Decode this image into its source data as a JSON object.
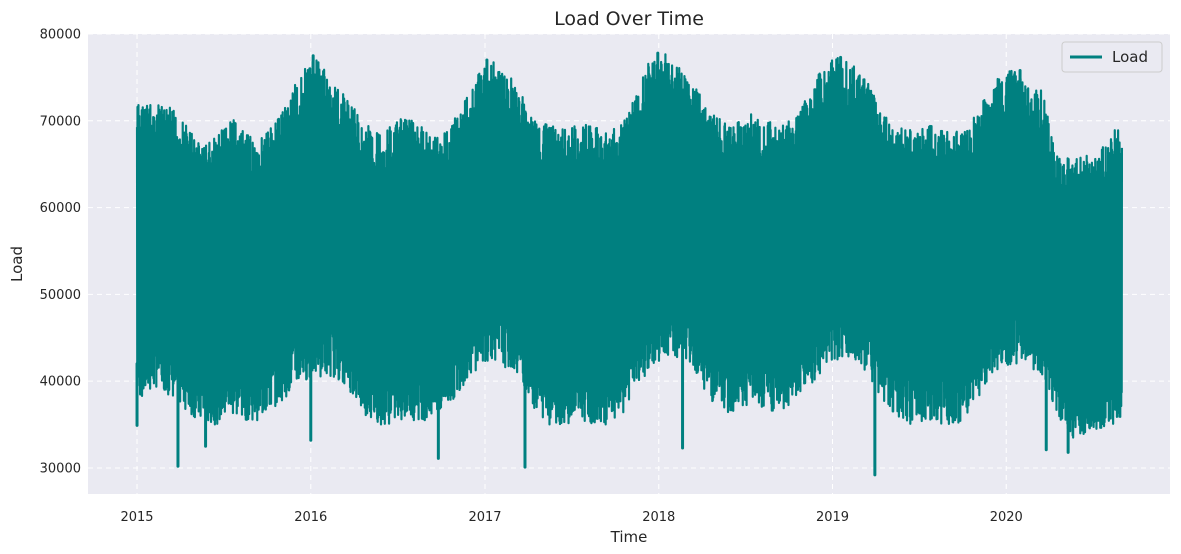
{
  "chart_data": {
    "type": "line",
    "title": "Load Over Time",
    "xlabel": "Time",
    "ylabel": "Load",
    "xlim": [
      "2014-09-20",
      "2020-12-10"
    ],
    "ylim": [
      27000,
      80000
    ],
    "x_ticks": [
      "2015",
      "2016",
      "2017",
      "2018",
      "2019",
      "2020"
    ],
    "y_ticks": [
      30000,
      40000,
      50000,
      60000,
      70000,
      80000
    ],
    "grid": true,
    "legend_position": "top-right",
    "colors": {
      "series": "#008080",
      "plot_background": "#eaeaf2",
      "grid": "#ffffff"
    },
    "series": [
      {
        "name": "Load",
        "x": [
          "2015-01",
          "2015-02",
          "2015-03",
          "2015-04",
          "2015-05",
          "2015-06",
          "2015-07",
          "2015-08",
          "2015-09",
          "2015-10",
          "2015-11",
          "2015-12",
          "2016-01",
          "2016-02",
          "2016-03",
          "2016-04",
          "2016-05",
          "2016-06",
          "2016-07",
          "2016-08",
          "2016-09",
          "2016-10",
          "2016-11",
          "2016-12",
          "2017-01",
          "2017-02",
          "2017-03",
          "2017-04",
          "2017-05",
          "2017-06",
          "2017-07",
          "2017-08",
          "2017-09",
          "2017-10",
          "2017-11",
          "2017-12",
          "2018-01",
          "2018-02",
          "2018-03",
          "2018-04",
          "2018-05",
          "2018-06",
          "2018-07",
          "2018-08",
          "2018-09",
          "2018-10",
          "2018-11",
          "2018-12",
          "2019-01",
          "2019-02",
          "2019-03",
          "2019-04",
          "2019-05",
          "2019-06",
          "2019-07",
          "2019-08",
          "2019-09",
          "2019-10",
          "2019-11",
          "2019-12",
          "2020-01",
          "2020-02",
          "2020-03",
          "2020-04",
          "2020-05",
          "2020-06",
          "2020-07",
          "2020-08"
        ],
        "max": [
          72300,
          71800,
          71500,
          69500,
          67500,
          68000,
          70500,
          68500,
          68000,
          70000,
          73000,
          76000,
          77500,
          74000,
          73000,
          70000,
          69000,
          69500,
          70500,
          69500,
          68500,
          69500,
          72000,
          75500,
          77000,
          75500,
          73500,
          70000,
          69500,
          69000,
          70000,
          69500,
          68500,
          70000,
          73500,
          77500,
          77800,
          76000,
          74500,
          71000,
          70000,
          70000,
          71000,
          70000,
          69500,
          70500,
          73500,
          77000,
          77300,
          76500,
          74500,
          71000,
          69500,
          69000,
          69500,
          69500,
          69000,
          70000,
          72500,
          75500,
          75800,
          74000,
          73500,
          66000,
          66000,
          66000,
          66500,
          69000
        ],
        "min": [
          38000,
          39500,
          38000,
          36500,
          35000,
          35000,
          36000,
          35500,
          35500,
          37000,
          38500,
          40000,
          40500,
          40500,
          39500,
          36500,
          35000,
          35000,
          35500,
          35500,
          35500,
          37000,
          39500,
          41500,
          42500,
          41500,
          40500,
          36500,
          35000,
          35000,
          35500,
          35000,
          35000,
          36000,
          39500,
          41500,
          42500,
          42500,
          41500,
          38000,
          36000,
          36500,
          37000,
          36500,
          36000,
          38000,
          39500,
          41500,
          42500,
          42000,
          40500,
          38000,
          35500,
          35000,
          35500,
          35000,
          35000,
          36000,
          39500,
          41500,
          42000,
          41500,
          40500,
          36000,
          33500,
          33500,
          34500,
          35000
        ],
        "spikes_low": [
          {
            "x": "2015-01-01",
            "y": 34900
          },
          {
            "x": "2015-03-28",
            "y": 30200
          },
          {
            "x": "2015-05-25",
            "y": 32500
          },
          {
            "x": "2016-01-01",
            "y": 33200
          },
          {
            "x": "2016-09-25",
            "y": 31100
          },
          {
            "x": "2017-03-26",
            "y": 30100
          },
          {
            "x": "2018-02-20",
            "y": 32300
          },
          {
            "x": "2019-03-31",
            "y": 29200
          },
          {
            "x": "2020-03-25",
            "y": 32100
          },
          {
            "x": "2020-05-10",
            "y": 31800
          }
        ],
        "spikes_high": [
          {
            "x": "2015-12-30",
            "y": 76000
          },
          {
            "x": "2016-01-06",
            "y": 77500
          },
          {
            "x": "2017-01-05",
            "y": 77000
          },
          {
            "x": "2017-12-30",
            "y": 77800
          },
          {
            "x": "2019-01-18",
            "y": 77300
          },
          {
            "x": "2020-01-30",
            "y": 75800
          }
        ]
      }
    ]
  }
}
